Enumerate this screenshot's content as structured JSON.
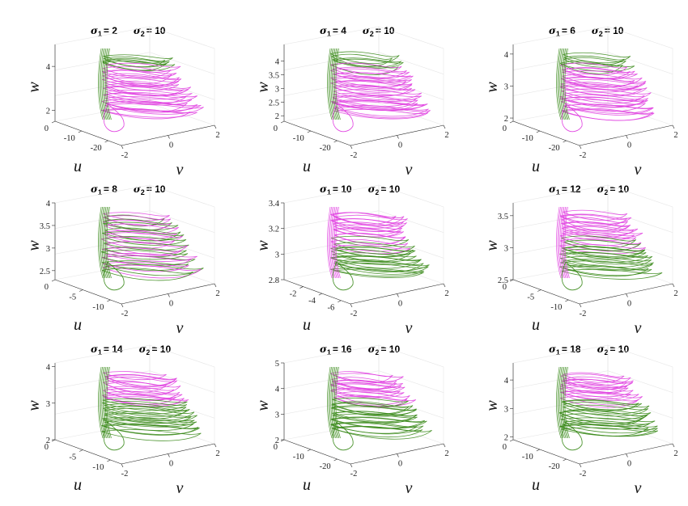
{
  "figure_description_none": "",
  "chart_data": [
    {
      "type": "line3d",
      "sigma1_label": "σ",
      "sigma1_sub": "1",
      "sigma1_value": "= 2",
      "sigma2_label": "σ",
      "sigma2_sub": "2",
      "sigma2_value": "= 10",
      "xlabel": "u",
      "ylabel": "v",
      "zlabel": "w",
      "u_ticks": [
        "0",
        "-10",
        "-20"
      ],
      "v_ticks": [
        "-2",
        "0",
        "2"
      ],
      "w_ticks": [
        "2",
        "4"
      ],
      "u_range": [
        -25,
        0
      ],
      "v_range": [
        -2,
        2
      ],
      "w_range": [
        1.5,
        5
      ],
      "dominant": "magenta",
      "green_top": true,
      "w_peak": 5
    },
    {
      "type": "line3d",
      "sigma1_label": "σ",
      "sigma1_sub": "1",
      "sigma1_value": "= 4",
      "sigma2_label": "σ",
      "sigma2_sub": "2",
      "sigma2_value": "= 10",
      "xlabel": "u",
      "ylabel": "v",
      "zlabel": "w",
      "u_ticks": [
        "0",
        "-10",
        "-20"
      ],
      "v_ticks": [
        "-2",
        "0",
        "2"
      ],
      "w_ticks": [
        "2",
        "2.5",
        "3",
        "3.5",
        "4"
      ],
      "u_range": [
        -25,
        0
      ],
      "v_range": [
        -2,
        2
      ],
      "w_range": [
        1.8,
        4.6
      ],
      "dominant": "magenta",
      "green_top": true,
      "w_peak": 4.6
    },
    {
      "type": "line3d",
      "sigma1_label": "σ",
      "sigma1_sub": "1",
      "sigma1_value": "= 6",
      "sigma2_label": "σ",
      "sigma2_sub": "2",
      "sigma2_value": "= 10",
      "xlabel": "u",
      "ylabel": "v",
      "zlabel": "w",
      "u_ticks": [
        "0",
        "-10",
        "-20"
      ],
      "v_ticks": [
        "-2",
        "0",
        "2"
      ],
      "w_ticks": [
        "2",
        "3",
        "4"
      ],
      "u_range": [
        -25,
        0
      ],
      "v_range": [
        -2,
        2
      ],
      "w_range": [
        1.9,
        4.3
      ],
      "dominant": "magenta",
      "green_top": true,
      "w_peak": 4.3
    },
    {
      "type": "line3d",
      "sigma1_label": "σ",
      "sigma1_sub": "1",
      "sigma1_value": "= 8",
      "sigma2_label": "σ",
      "sigma2_sub": "2",
      "sigma2_value": "= 10",
      "xlabel": "u",
      "ylabel": "v",
      "zlabel": "w",
      "u_ticks": [
        "0",
        "-5",
        "-10"
      ],
      "v_ticks": [
        "-2",
        "0",
        "2"
      ],
      "w_ticks": [
        "2.5",
        "3",
        "3.5",
        "4"
      ],
      "u_range": [
        -12,
        0
      ],
      "v_range": [
        -2,
        2
      ],
      "w_range": [
        2.3,
        4
      ],
      "dominant": "mixed",
      "green_top": true,
      "w_peak": 4
    },
    {
      "type": "line3d",
      "sigma1_label": "σ",
      "sigma1_sub": "1",
      "sigma1_value": "= 10",
      "sigma2_label": "σ",
      "sigma2_sub": "2",
      "sigma2_value": "= 10",
      "xlabel": "u",
      "ylabel": "v",
      "zlabel": "w",
      "u_ticks": [
        "-2",
        "-4",
        "-6"
      ],
      "v_ticks": [
        "-2",
        "0",
        "2"
      ],
      "w_ticks": [
        "2.8",
        "3",
        "3.2",
        "3.4"
      ],
      "u_range": [
        -7,
        0
      ],
      "v_range": [
        -2,
        2
      ],
      "w_range": [
        2.8,
        3.4
      ],
      "dominant": "mixed",
      "green_top": false,
      "w_peak": 3.4
    },
    {
      "type": "line3d",
      "sigma1_label": "σ",
      "sigma1_sub": "1",
      "sigma1_value": "= 12",
      "sigma2_label": "σ",
      "sigma2_sub": "2",
      "sigma2_value": "= 10",
      "xlabel": "u",
      "ylabel": "v",
      "zlabel": "w",
      "u_ticks": [
        "0",
        "-5",
        "-10"
      ],
      "v_ticks": [
        "-2",
        "0",
        "2"
      ],
      "w_ticks": [
        "2.5",
        "3",
        "3.5"
      ],
      "u_range": [
        -12,
        0
      ],
      "v_range": [
        -2,
        2
      ],
      "w_range": [
        2.5,
        3.7
      ],
      "dominant": "mixed",
      "green_top": false,
      "w_peak": 3.7
    },
    {
      "type": "line3d",
      "sigma1_label": "σ",
      "sigma1_sub": "1",
      "sigma1_value": "= 14",
      "sigma2_label": "σ",
      "sigma2_sub": "2",
      "sigma2_value": "= 10",
      "xlabel": "u",
      "ylabel": "v",
      "zlabel": "w",
      "u_ticks": [
        "0",
        "-5",
        "-10"
      ],
      "v_ticks": [
        "-2",
        "0",
        "2"
      ],
      "w_ticks": [
        "2",
        "3",
        "4"
      ],
      "u_range": [
        -12,
        0
      ],
      "v_range": [
        -2,
        2
      ],
      "w_range": [
        2,
        4.1
      ],
      "dominant": "green",
      "green_top": false,
      "w_peak": 4.1
    },
    {
      "type": "line3d",
      "sigma1_label": "σ",
      "sigma1_sub": "1",
      "sigma1_value": "= 16",
      "sigma2_label": "σ",
      "sigma2_sub": "2",
      "sigma2_value": "= 10",
      "xlabel": "u",
      "ylabel": "v",
      "zlabel": "w",
      "u_ticks": [
        "0",
        "-10",
        "-20"
      ],
      "v_ticks": [
        "-2",
        "0",
        "2"
      ],
      "w_ticks": [
        "2",
        "3",
        "4",
        "5"
      ],
      "u_range": [
        -25,
        0
      ],
      "v_range": [
        -2,
        2
      ],
      "w_range": [
        2,
        5
      ],
      "dominant": "green",
      "green_top": false,
      "w_peak": 5
    },
    {
      "type": "line3d",
      "sigma1_label": "σ",
      "sigma1_sub": "1",
      "sigma1_value": "= 18",
      "sigma2_label": "σ",
      "sigma2_sub": "2",
      "sigma2_value": "= 10",
      "xlabel": "u",
      "ylabel": "v",
      "zlabel": "w",
      "u_ticks": [
        "0",
        "-10",
        "-20"
      ],
      "v_ticks": [
        "-2",
        "0",
        "2"
      ],
      "w_ticks": [
        "2",
        "3",
        "4"
      ],
      "u_range": [
        -25,
        0
      ],
      "v_range": [
        -2,
        2
      ],
      "w_range": [
        1.9,
        4.6
      ],
      "dominant": "green",
      "green_top": false,
      "w_peak": 4.6
    }
  ],
  "colors": {
    "magenta": "#e040e0",
    "green": "#3a8a1a",
    "axis": "#262626",
    "grid": "#e6e6e6"
  }
}
